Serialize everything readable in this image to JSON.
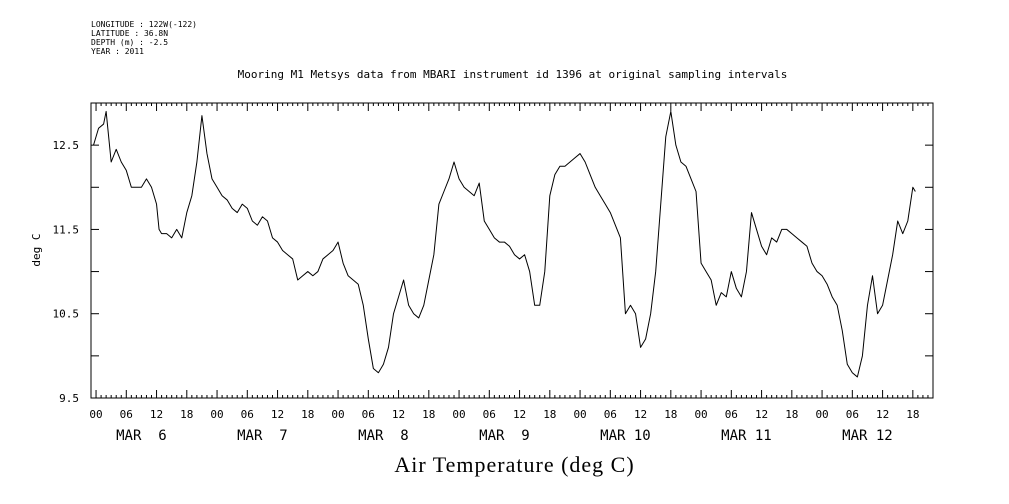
{
  "meta": {
    "longitude": "LONGITUDE : 122W(-122)",
    "latitude": "LATITUDE : 36.8N",
    "depth": "DEPTH (m) : -2.5",
    "year": "YEAR : 2011"
  },
  "chart_data": {
    "type": "line",
    "title": "Mooring M1 Metsys data from MBARI instrument id 1396 at original sampling intervals",
    "xlabel": "Air Temperature (deg C)",
    "ylabel": "deg C",
    "ylim": [
      9.5,
      13.0
    ],
    "xlim_hours": [
      -1,
      166
    ],
    "y_ticks": [
      "12.5",
      "11.5",
      "10.5",
      "9.5"
    ],
    "y_tick_values": [
      12.5,
      11.5,
      10.5,
      9.5
    ],
    "x_hour_tick_labels": [
      "00",
      "06",
      "12",
      "18",
      "00",
      "06",
      "12",
      "18",
      "00",
      "06",
      "12",
      "18",
      "00",
      "06",
      "12",
      "18",
      "00",
      "06",
      "12",
      "18",
      "00",
      "06",
      "12",
      "18",
      "00",
      "06",
      "12",
      "18"
    ],
    "day_labels": [
      "MAR  6",
      "MAR  7",
      "MAR  8",
      "MAR  9",
      "MAR 10",
      "MAR 11",
      "MAR 12"
    ],
    "grid": false,
    "series": [
      {
        "color": "#000000",
        "points": [
          [
            -0.5,
            12.5
          ],
          [
            0.5,
            12.7
          ],
          [
            1.5,
            12.75
          ],
          [
            2,
            12.9
          ],
          [
            2.5,
            12.6
          ],
          [
            3,
            12.3
          ],
          [
            4,
            12.45
          ],
          [
            5,
            12.3
          ],
          [
            6,
            12.2
          ],
          [
            7,
            12.0
          ],
          [
            8,
            12.0
          ],
          [
            9,
            12.0
          ],
          [
            10,
            12.1
          ],
          [
            11,
            12.0
          ],
          [
            12,
            11.8
          ],
          [
            12.5,
            11.5
          ],
          [
            13,
            11.45
          ],
          [
            14,
            11.45
          ],
          [
            15,
            11.4
          ],
          [
            16,
            11.5
          ],
          [
            17,
            11.4
          ],
          [
            18,
            11.7
          ],
          [
            19,
            11.9
          ],
          [
            20,
            12.3
          ],
          [
            21,
            12.85
          ],
          [
            22,
            12.4
          ],
          [
            23,
            12.1
          ],
          [
            24,
            12.0
          ],
          [
            25,
            11.9
          ],
          [
            26,
            11.85
          ],
          [
            27,
            11.75
          ],
          [
            28,
            11.7
          ],
          [
            29,
            11.8
          ],
          [
            30,
            11.75
          ],
          [
            31,
            11.6
          ],
          [
            32,
            11.55
          ],
          [
            33,
            11.65
          ],
          [
            34,
            11.6
          ],
          [
            35,
            11.4
          ],
          [
            36,
            11.35
          ],
          [
            37,
            11.25
          ],
          [
            38,
            11.2
          ],
          [
            39,
            11.15
          ],
          [
            40,
            10.9
          ],
          [
            41,
            10.95
          ],
          [
            42,
            11.0
          ],
          [
            43,
            10.95
          ],
          [
            44,
            11.0
          ],
          [
            45,
            11.15
          ],
          [
            46,
            11.2
          ],
          [
            47,
            11.25
          ],
          [
            48,
            11.35
          ],
          [
            49,
            11.1
          ],
          [
            50,
            10.95
          ],
          [
            51,
            10.9
          ],
          [
            52,
            10.85
          ],
          [
            53,
            10.6
          ],
          [
            54,
            10.2
          ],
          [
            55,
            9.85
          ],
          [
            56,
            9.8
          ],
          [
            57,
            9.9
          ],
          [
            58,
            10.1
          ],
          [
            59,
            10.5
          ],
          [
            60,
            10.7
          ],
          [
            61,
            10.9
          ],
          [
            62,
            10.6
          ],
          [
            63,
            10.5
          ],
          [
            64,
            10.45
          ],
          [
            65,
            10.6
          ],
          [
            66,
            10.9
          ],
          [
            67,
            11.2
          ],
          [
            68,
            11.8
          ],
          [
            69,
            11.95
          ],
          [
            70,
            12.1
          ],
          [
            71,
            12.3
          ],
          [
            72,
            12.1
          ],
          [
            73,
            12.0
          ],
          [
            74,
            11.95
          ],
          [
            75,
            11.9
          ],
          [
            76,
            12.05
          ],
          [
            77,
            11.6
          ],
          [
            78,
            11.5
          ],
          [
            79,
            11.4
          ],
          [
            80,
            11.35
          ],
          [
            81,
            11.35
          ],
          [
            82,
            11.3
          ],
          [
            83,
            11.2
          ],
          [
            84,
            11.15
          ],
          [
            85,
            11.2
          ],
          [
            86,
            11.0
          ],
          [
            87,
            10.6
          ],
          [
            88,
            10.6
          ],
          [
            89,
            11.0
          ],
          [
            90,
            11.9
          ],
          [
            91,
            12.15
          ],
          [
            92,
            12.25
          ],
          [
            93,
            12.25
          ],
          [
            94,
            12.3
          ],
          [
            95,
            12.35
          ],
          [
            96,
            12.4
          ],
          [
            97,
            12.3
          ],
          [
            98,
            12.15
          ],
          [
            99,
            12.0
          ],
          [
            100,
            11.9
          ],
          [
            101,
            11.8
          ],
          [
            102,
            11.7
          ],
          [
            103,
            11.55
          ],
          [
            104,
            11.4
          ],
          [
            105,
            10.5
          ],
          [
            106,
            10.6
          ],
          [
            107,
            10.5
          ],
          [
            108,
            10.1
          ],
          [
            109,
            10.2
          ],
          [
            110,
            10.5
          ],
          [
            111,
            11.0
          ],
          [
            112,
            11.8
          ],
          [
            113,
            12.6
          ],
          [
            114,
            12.9
          ],
          [
            115,
            12.5
          ],
          [
            116,
            12.3
          ],
          [
            117,
            12.25
          ],
          [
            118,
            12.1
          ],
          [
            119,
            11.95
          ],
          [
            120,
            11.1
          ],
          [
            121,
            11.0
          ],
          [
            122,
            10.9
          ],
          [
            123,
            10.6
          ],
          [
            124,
            10.75
          ],
          [
            125,
            10.7
          ],
          [
            126,
            11.0
          ],
          [
            127,
            10.8
          ],
          [
            128,
            10.7
          ],
          [
            129,
            11.0
          ],
          [
            130,
            11.7
          ],
          [
            131,
            11.5
          ],
          [
            132,
            11.3
          ],
          [
            133,
            11.2
          ],
          [
            134,
            11.4
          ],
          [
            135,
            11.35
          ],
          [
            136,
            11.5
          ],
          [
            137,
            11.5
          ],
          [
            138,
            11.45
          ],
          [
            139,
            11.4
          ],
          [
            140,
            11.35
          ],
          [
            141,
            11.3
          ],
          [
            142,
            11.1
          ],
          [
            143,
            11.0
          ],
          [
            144,
            10.95
          ],
          [
            145,
            10.85
          ],
          [
            146,
            10.7
          ],
          [
            147,
            10.6
          ],
          [
            148,
            10.3
          ],
          [
            149,
            9.9
          ],
          [
            150,
            9.8
          ],
          [
            151,
            9.75
          ],
          [
            152,
            10.0
          ],
          [
            153,
            10.6
          ],
          [
            154,
            10.95
          ],
          [
            155,
            10.5
          ],
          [
            156,
            10.6
          ],
          [
            157,
            10.9
          ],
          [
            158,
            11.2
          ],
          [
            159,
            11.6
          ],
          [
            160,
            11.45
          ],
          [
            161,
            11.6
          ],
          [
            162,
            12.0
          ],
          [
            162.5,
            11.95
          ]
        ]
      }
    ]
  }
}
